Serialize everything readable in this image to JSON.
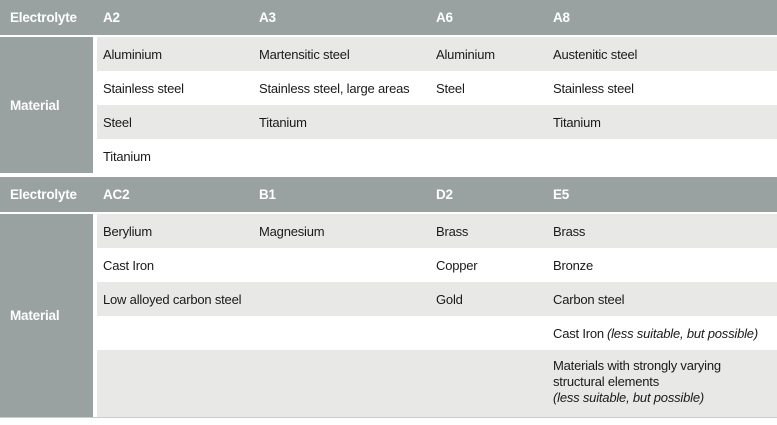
{
  "colors": {
    "header_bg": "#9aa1a1",
    "row_alt_bg": "#e8e8e7",
    "row_bg": "#ffffff",
    "header_text": "#ffffff",
    "body_text": "#1a1a18"
  },
  "sections": [
    {
      "header": {
        "label": "Electrolyte",
        "columns": [
          "A2",
          "A3",
          "A6",
          "A8"
        ]
      },
      "row_label": "Material",
      "rows": [
        [
          "Aluminium",
          "Martensitic steel",
          "Aluminium",
          "Austenitic steel"
        ],
        [
          "Stainless steel",
          "Stainless steel, large areas",
          "Steel",
          "Stainless steel"
        ],
        [
          "Steel",
          "Titanium",
          "",
          "Titanium"
        ],
        [
          "Titanium",
          "",
          "",
          ""
        ]
      ]
    },
    {
      "header": {
        "label": "Electrolyte",
        "columns": [
          "AC2",
          "B1",
          "D2",
          "E5"
        ]
      },
      "row_label": "Material",
      "rows": [
        [
          "Berylium",
          "Magnesium",
          "Brass",
          "Brass"
        ],
        [
          "Cast Iron",
          "",
          "Copper",
          "Bronze"
        ],
        [
          "Low alloyed carbon steel",
          "",
          "Gold",
          "Carbon steel"
        ],
        [
          "",
          "",
          "",
          {
            "text": "Cast Iron",
            "note": "(less suitable, but possible)"
          }
        ],
        [
          "",
          "",
          "",
          {
            "text": "Materials with strongly varying structural elements",
            "note": "(less suitable, but possible)"
          }
        ]
      ]
    }
  ]
}
